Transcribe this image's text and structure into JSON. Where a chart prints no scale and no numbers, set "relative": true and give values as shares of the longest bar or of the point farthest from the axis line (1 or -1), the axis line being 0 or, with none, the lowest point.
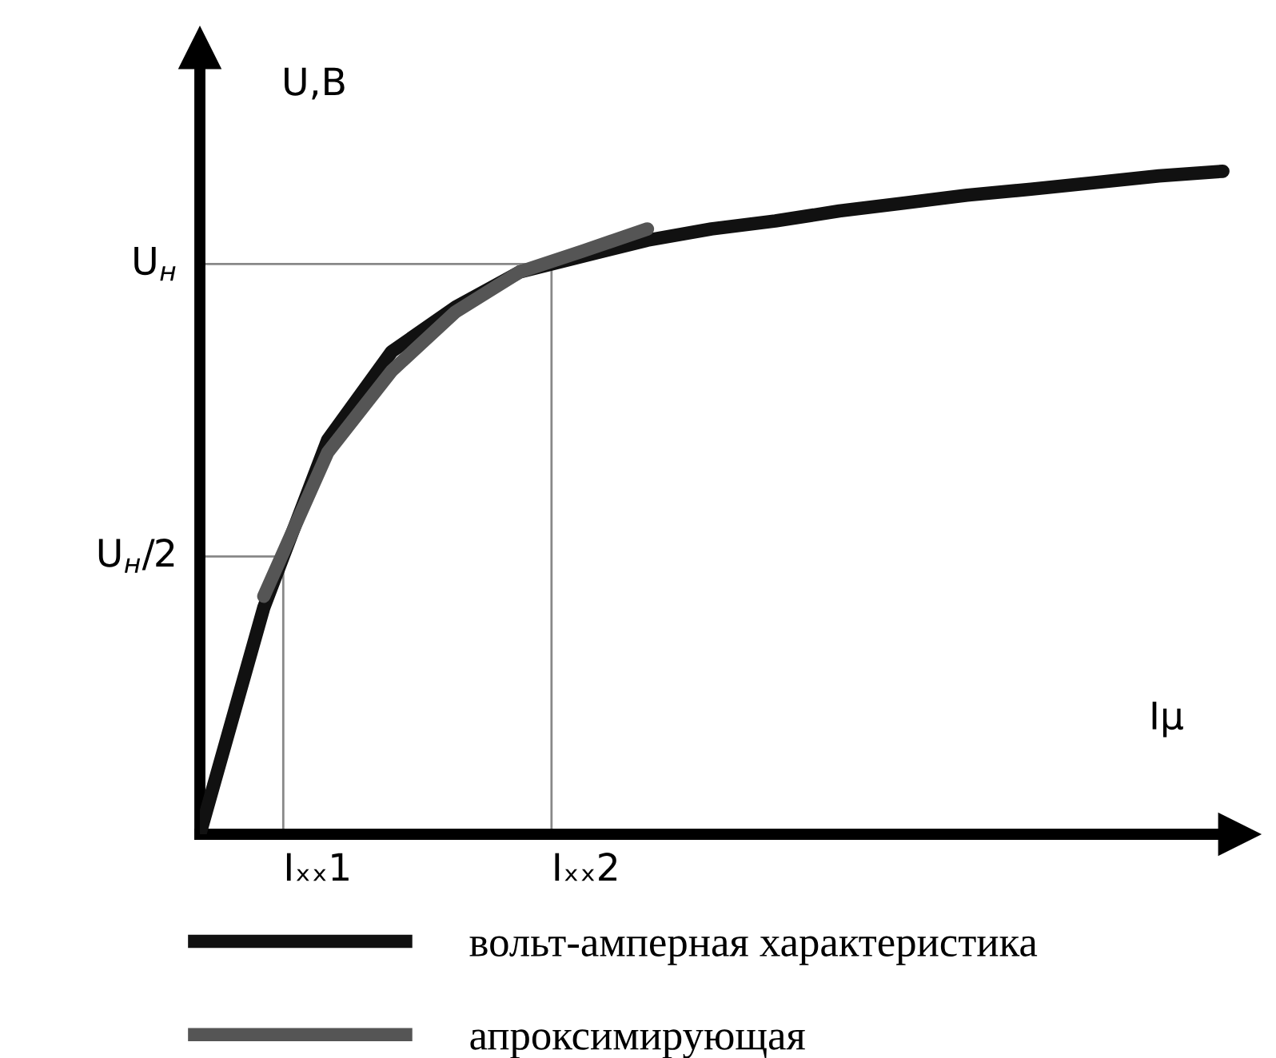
{
  "chart_data": {
    "type": "line",
    "xlabel": "Iµ",
    "ylabel": "U,B",
    "relative": true,
    "categories": [
      null,
      null,
      null,
      null,
      null,
      null,
      null,
      null,
      null,
      null,
      null,
      null,
      null,
      null,
      null,
      null,
      null
    ],
    "ref_lines": [
      {
        "axis": "y",
        "value": 0.419,
        "label": "U$_{н}$/2",
        "color": "#888888"
      },
      {
        "axis": "y",
        "value": 0.86,
        "label": "U$_{н}$",
        "color": "#888888"
      }
    ],
    "annotations": [
      "Iₓₓ1",
      "Iₓₓ2"
    ],
    "series": [
      {
        "name": "вольт-амперная характеристика",
        "color": "#111111",
        "values": [
          0,
          0.342,
          0.595,
          0.728,
          0.795,
          0.848,
          0.872,
          0.896,
          0.913,
          0.925,
          0.94,
          0.952,
          0.964,
          0.973,
          0.983,
          0.993,
          1
        ]
      },
      {
        "name": "апроксимирующая",
        "color": "#555555",
        "values": [
          null,
          0.359,
          0.576,
          0.699,
          0.788,
          0.848,
          0.88,
          0.913,
          null,
          null,
          null,
          null,
          null,
          null,
          null,
          null,
          null
        ]
      }
    ],
    "legend": "bottom",
    "marker": "none",
    "line_style": "solid"
  }
}
